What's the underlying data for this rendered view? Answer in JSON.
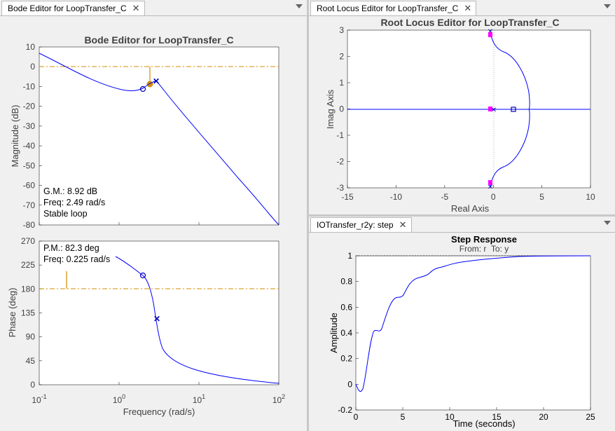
{
  "bode_panel": {
    "tab_label": "Bode Editor for LoopTransfer_C",
    "title": "Bode Editor for LoopTransfer_C",
    "mag_ylabel": "Magnitude (dB)",
    "phase_ylabel": "Phase (deg)",
    "xlabel": "Frequency (rad/s)",
    "mag_yticks": [
      "10",
      "0",
      "-10",
      "-20",
      "-30",
      "-40",
      "-50",
      "-60",
      "-70",
      "-80"
    ],
    "phase_yticks": [
      "270",
      "225",
      "180",
      "135",
      "90",
      "45",
      "0"
    ],
    "xticks": [
      {
        "base": "10",
        "exp": "-1"
      },
      {
        "base": "10",
        "exp": "0"
      },
      {
        "base": "10",
        "exp": "1"
      },
      {
        "base": "10",
        "exp": "2"
      }
    ],
    "gm_lines": [
      "G.M.: 8.92 dB",
      "Freq: 2.49 rad/s",
      "Stable loop"
    ],
    "pm_lines": [
      "P.M.: 82.3 deg",
      "Freq: 0.225 rad/s"
    ]
  },
  "rlocus_panel": {
    "tab_label": "Root Locus Editor for LoopTransfer_C",
    "title": "Root Locus Editor for LoopTransfer_C",
    "xlabel": "Real Axis",
    "ylabel": "Imag Axis",
    "xticks": [
      "-15",
      "-10",
      "-5",
      "0",
      "5",
      "10"
    ],
    "yticks": [
      "3",
      "2",
      "1",
      "0",
      "-1",
      "-2",
      "-3"
    ]
  },
  "step_panel": {
    "tab_label": "IOTransfer_r2y: step",
    "title": "Step Response",
    "subtitle": "From: r  To: y",
    "xlabel": "Time (seconds)",
    "ylabel": "Amplitude",
    "xticks": [
      "0",
      "5",
      "10",
      "15",
      "20",
      "25"
    ],
    "yticks": [
      "1",
      "0.8",
      "0.6",
      "0.4",
      "0.2",
      "0",
      "-0.2"
    ]
  },
  "colors": {
    "curve": "#0000ff",
    "margin": "#d48c00",
    "pole_zero": "#0000bb",
    "closed_loop_marker": "#ff00ff"
  },
  "chart_data": [
    {
      "type": "line",
      "title": "Bode Editor for LoopTransfer_C",
      "ylabel": "Magnitude (dB)",
      "xscale": "log",
      "xlim": [
        0.1,
        100
      ],
      "ylim": [
        -80,
        10
      ],
      "x": [
        0.1,
        0.2,
        0.5,
        1,
        1.5,
        2,
        2.5,
        3,
        5,
        10,
        20,
        50,
        100
      ],
      "values": [
        6,
        -1,
        -8,
        -12,
        -12,
        -10,
        -8,
        -7,
        -21,
        -39,
        -50,
        -66,
        -80
      ],
      "gain_margin_db": 8.92,
      "gain_margin_freq": 2.49
    },
    {
      "type": "line",
      "ylabel": "Phase (deg)",
      "xlabel": "Frequency (rad/s)",
      "xscale": "log",
      "xlim": [
        0.1,
        100
      ],
      "ylim": [
        0,
        270
      ],
      "x": [
        1,
        1.5,
        2,
        2.5,
        3,
        3.5,
        5,
        10,
        20,
        50,
        100
      ],
      "values": [
        240,
        225,
        210,
        180,
        120,
        60,
        25,
        12,
        7,
        3,
        1
      ],
      "phase_margin_deg": 82.3,
      "phase_margin_freq": 0.225
    },
    {
      "type": "scatter",
      "title": "Root Locus Editor for LoopTransfer_C",
      "xlabel": "Real Axis",
      "ylabel": "Imag Axis",
      "xlim": [
        -15,
        10
      ],
      "ylim": [
        -3,
        3
      ],
      "open_loop_poles": [
        [
          0,
          3
        ],
        [
          0,
          -3
        ],
        [
          0,
          0
        ]
      ],
      "open_loop_zeros": [
        [
          2,
          0
        ]
      ],
      "closed_loop_poles": [
        [
          -0.5,
          2.8
        ],
        [
          -0.5,
          -2.8
        ],
        [
          -0.5,
          0
        ]
      ]
    },
    {
      "type": "line",
      "title": "Step Response",
      "xlabel": "Time (seconds)",
      "ylabel": "Amplitude",
      "xlim": [
        0,
        25
      ],
      "ylim": [
        -0.2,
        1
      ],
      "x": [
        0,
        0.8,
        1.5,
        2.5,
        3.2,
        4,
        5,
        6,
        7,
        8,
        9,
        10,
        12,
        14,
        16,
        18,
        20,
        25
      ],
      "values": [
        0,
        -0.05,
        0.2,
        0.42,
        0.43,
        0.58,
        0.67,
        0.72,
        0.8,
        0.83,
        0.89,
        0.91,
        0.95,
        0.97,
        0.985,
        0.993,
        0.998,
        1.0
      ]
    }
  ]
}
